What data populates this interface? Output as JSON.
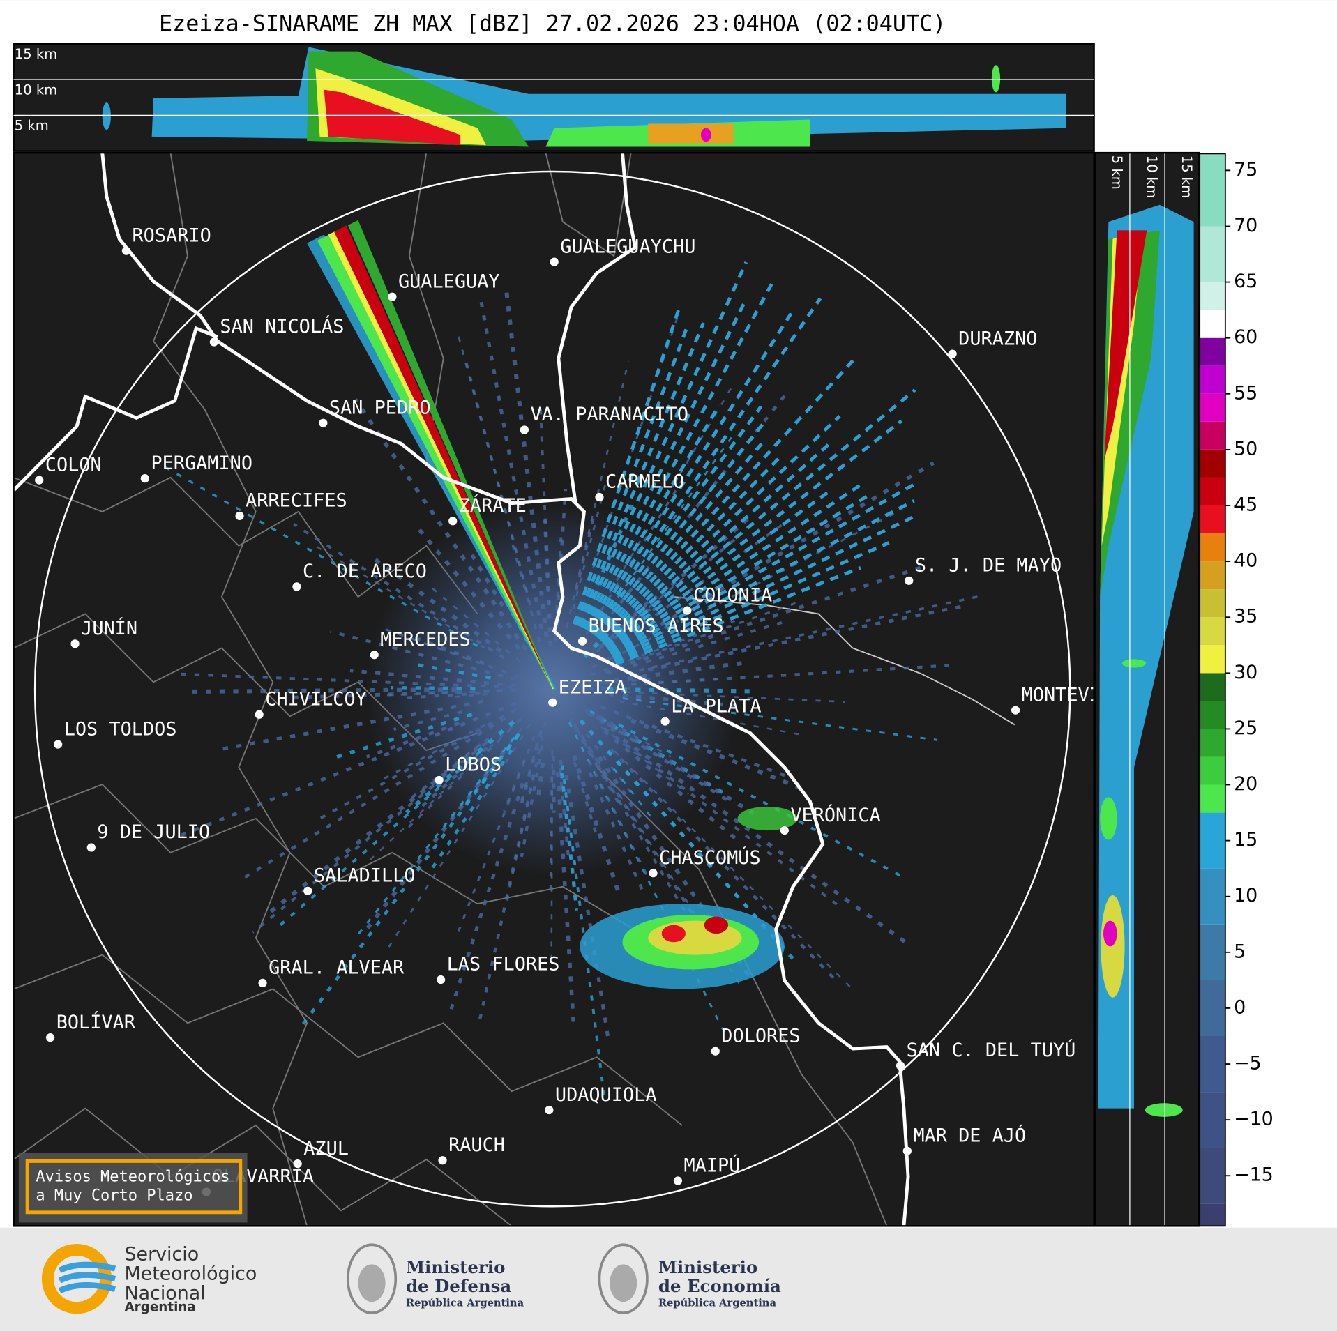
{
  "title": "Ezeiza-SINARAME ZH MAX [dBZ] 27.02.2026 23:04HOA (02:04UTC)",
  "profile_top": {
    "height_labels": [
      "15 km",
      "10 km",
      "5 km"
    ]
  },
  "profile_side": {
    "height_labels": [
      "5 km",
      "10 km",
      "15 km"
    ]
  },
  "map": {
    "cities": [
      "ROSARIO",
      "GUALEGUAYCHU",
      "GUALEGUAY",
      "SAN NICOLÁS",
      "DURAZNO",
      "SAN PEDRO",
      "VA. PARANACITO",
      "COLON",
      "PERGAMINO",
      "CARMELO",
      "ARRECIFES",
      "ZÁRATE",
      "S. J. DE MAYO",
      "C. DE ARECO",
      "COLONIA",
      "JUNÍN",
      "BUENOS AIRES",
      "MERCEDES",
      "EZEIZA",
      "MONTEVIDEO",
      "CHIVILCOY",
      "LA PLATA",
      "LOS TOLDOS",
      "LOBOS",
      "VERÓNICA",
      "9 DE JULIO",
      "CHASCOMÚS",
      "SALADILLO",
      "LAS FLORES",
      "GRAL. ALVEAR",
      "BOLÍVAR",
      "DOLORES",
      "SAN C. DEL TUYÚ",
      "UDAQUIOLA",
      "MAR DE AJÓ",
      "AZUL",
      "RAUCH",
      "OLAVARRÍA",
      "MAIPÚ"
    ]
  },
  "warning_box": {
    "lines": [
      "Avisos Meteorológicos",
      "a Muy Corto Plazo"
    ]
  },
  "colorbar": {
    "lim": [
      -19.5,
      76.5
    ],
    "ticks": [
      {
        "value": -15,
        "label": "−15"
      },
      {
        "value": -10,
        "label": "−10"
      },
      {
        "value": -5,
        "label": "−5"
      },
      0,
      5,
      10,
      15,
      20,
      25,
      30,
      35,
      40,
      45,
      50,
      55,
      60,
      65,
      70,
      75
    ],
    "bounds": [
      -19.5,
      -17.5,
      -12.5,
      -7.5,
      -2.5,
      2.5,
      7.5,
      12.5,
      17.5,
      20,
      22.5,
      25,
      27.5,
      30,
      32.5,
      35,
      37.5,
      40,
      42.5,
      45,
      47.5,
      50,
      52.5,
      55,
      57.5,
      60,
      62.5,
      65,
      70,
      76.5
    ],
    "colors": [
      "#3a3f6e",
      "#3d4a7a",
      "#3e5285",
      "#3f5a8e",
      "#3f6a99",
      "#3c7aa8",
      "#3590c0",
      "#2aa5d8",
      "#4de64d",
      "#3dcc3d",
      "#2fa82f",
      "#248a24",
      "#1d6b1d",
      "#f0f040",
      "#d8d840",
      "#c8c030",
      "#d4a020",
      "#e88010",
      "#e81020",
      "#c80010",
      "#a00000",
      "#c80060",
      "#e000c0",
      "#c000d0",
      "#8000a0",
      "#ffffff",
      "#d0f0e8",
      "#b0e8d8",
      "#88dcc0"
    ]
  },
  "logos": [
    {
      "lines": [
        "Servicio",
        "Meteorológico",
        "Nacional"
      ],
      "sub": "Argentina"
    },
    {
      "lines": [
        "Ministerio",
        "de Defensa"
      ],
      "sub": "República Argentina"
    },
    {
      "lines": [
        "Ministerio",
        "de Economía"
      ],
      "sub": "República Argentina"
    }
  ]
}
